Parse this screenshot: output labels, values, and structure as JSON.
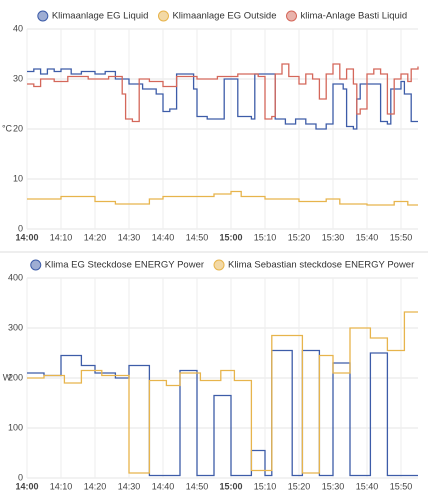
{
  "chart_data": [
    {
      "type": "line",
      "ylabel": "°C",
      "ylim": [
        0,
        40
      ],
      "yticks": [
        0,
        10,
        20,
        30,
        40
      ],
      "xlim": [
        0,
        115
      ],
      "xticks": [
        {
          "value": 0,
          "label": "14:00"
        },
        {
          "value": 10,
          "label": "14:10"
        },
        {
          "value": 20,
          "label": "14:20"
        },
        {
          "value": 30,
          "label": "14:30"
        },
        {
          "value": 40,
          "label": "14:40"
        },
        {
          "value": 50,
          "label": "14:50"
        },
        {
          "value": 60,
          "label": "15:00"
        },
        {
          "value": 70,
          "label": "15:10"
        },
        {
          "value": 80,
          "label": "15:20"
        },
        {
          "value": 90,
          "label": "15:30"
        },
        {
          "value": 100,
          "label": "15:40"
        },
        {
          "value": 110,
          "label": "15:50"
        }
      ],
      "grid": true,
      "step": true,
      "series": [
        {
          "name": "Klimaanlage EG Liquid",
          "color": "#3d5ca8",
          "x": [
            0,
            2,
            4,
            6,
            8,
            10,
            13,
            16,
            20,
            23,
            26,
            30,
            34,
            38,
            40,
            42,
            44,
            47,
            49,
            50,
            53,
            57,
            58,
            61,
            62,
            66,
            67,
            72,
            73,
            76,
            79,
            82,
            85,
            88,
            90,
            93,
            94,
            96,
            97,
            98,
            103,
            104,
            106,
            107,
            110,
            111,
            113,
            115
          ],
          "values": [
            31.5,
            32,
            31,
            32,
            31.5,
            32,
            31,
            31.5,
            31,
            31.5,
            30,
            29,
            28,
            27,
            23.5,
            24,
            31,
            31,
            28,
            22.5,
            22,
            22,
            30,
            30,
            22.5,
            22,
            31,
            31,
            22,
            21,
            22,
            21,
            20,
            21,
            29,
            28,
            20.5,
            20,
            26,
            29,
            29,
            21.5,
            21,
            28,
            29.5,
            27,
            21.5,
            21.5
          ]
        },
        {
          "name": "Klimaanlage EG Outside",
          "color": "#e7b44c",
          "x": [
            0,
            10,
            20,
            26,
            36,
            40,
            55,
            60,
            63,
            70,
            80,
            88,
            92,
            100,
            108,
            112,
            115
          ],
          "values": [
            6,
            6.5,
            5.5,
            5,
            6,
            6.5,
            7,
            7.5,
            6.5,
            6,
            5.5,
            6,
            5,
            4.8,
            5.5,
            4.8,
            4.8
          ]
        },
        {
          "name": "klima-Anlage Basti Liquid",
          "color": "#d4675a",
          "x": [
            0,
            2,
            4,
            8,
            12,
            18,
            24,
            28,
            29,
            31,
            33,
            36,
            40,
            44,
            50,
            56,
            62,
            68,
            70,
            72,
            73,
            75,
            77,
            80,
            82,
            84,
            86,
            88,
            90,
            92,
            94,
            96,
            97,
            98,
            100,
            102,
            104,
            106,
            108,
            110,
            112,
            113,
            115
          ],
          "values": [
            29,
            28.5,
            30,
            29.5,
            30.5,
            30,
            30.5,
            27,
            22,
            21.5,
            30,
            29.5,
            28.5,
            30.5,
            30,
            30.5,
            31,
            30.5,
            22,
            22.5,
            31,
            33,
            30.5,
            29,
            31,
            30,
            26,
            31,
            33,
            30,
            32,
            29,
            23,
            24,
            31,
            32,
            31,
            23,
            30,
            31,
            29.5,
            32,
            32.5
          ]
        }
      ]
    },
    {
      "type": "line",
      "ylabel": "W",
      "ylim": [
        0,
        400
      ],
      "yticks": [
        0,
        100,
        200,
        300,
        400
      ],
      "xlim": [
        0,
        115
      ],
      "xticks": [
        {
          "value": 0,
          "label": "14:00"
        },
        {
          "value": 10,
          "label": "14:10"
        },
        {
          "value": 20,
          "label": "14:20"
        },
        {
          "value": 30,
          "label": "14:30"
        },
        {
          "value": 40,
          "label": "14:40"
        },
        {
          "value": 50,
          "label": "14:50"
        },
        {
          "value": 60,
          "label": "15:00"
        },
        {
          "value": 70,
          "label": "15:10"
        },
        {
          "value": 80,
          "label": "15:20"
        },
        {
          "value": 90,
          "label": "15:30"
        },
        {
          "value": 100,
          "label": "15:40"
        },
        {
          "value": 110,
          "label": "15:50"
        }
      ],
      "grid": true,
      "step": true,
      "series": [
        {
          "name": "Klima EG Steckdose ENERGY Power",
          "color": "#3d5ca8",
          "x": [
            0,
            5,
            10,
            16,
            20,
            26,
            30,
            36,
            45,
            50,
            55,
            60,
            66,
            70,
            72,
            78,
            81,
            86,
            90,
            95,
            101,
            106,
            115
          ],
          "values": [
            210,
            205,
            245,
            225,
            210,
            200,
            225,
            5,
            215,
            5,
            165,
            5,
            55,
            5,
            255,
            5,
            255,
            5,
            230,
            5,
            250,
            5,
            5
          ]
        },
        {
          "name": "Klima Sebastian steckdose ENERGY Power",
          "color": "#e7b44c",
          "x": [
            0,
            5,
            11,
            16,
            22,
            30,
            36,
            41,
            45,
            51,
            57,
            61,
            66,
            72,
            81,
            86,
            90,
            95,
            101,
            106,
            111,
            115
          ],
          "values": [
            200,
            205,
            190,
            215,
            205,
            10,
            195,
            185,
            210,
            195,
            215,
            195,
            15,
            285,
            10,
            245,
            210,
            300,
            280,
            255,
            332,
            332
          ]
        }
      ]
    }
  ]
}
